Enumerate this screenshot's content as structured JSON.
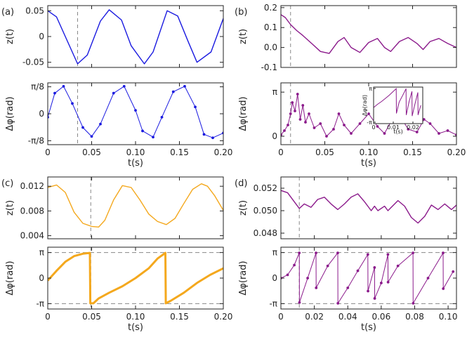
{
  "chart_data": [
    {
      "id": "a",
      "panel_label": "(a)",
      "type": "line",
      "row": "top",
      "color": "#1a1ae0",
      "xlim": [
        0,
        0.2
      ],
      "xticks": [
        0,
        0.05,
        0.1,
        0.15,
        0.2
      ],
      "xtick_labels": [],
      "xlabel": "",
      "ylim": [
        -0.06,
        0.06
      ],
      "yticks": [
        0.05,
        0,
        -0.05
      ],
      "ytick_labels": [
        "0.05",
        "0",
        "-0.05"
      ],
      "ylabel": "z(t)",
      "vline_x": 0.034,
      "series": [
        {
          "name": "z(t)",
          "x": [
            0,
            0.01,
            0.02,
            0.034,
            0.045,
            0.06,
            0.07,
            0.084,
            0.095,
            0.11,
            0.12,
            0.136,
            0.148,
            0.16,
            0.17,
            0.186,
            0.2
          ],
          "y": [
            0.05,
            0.038,
            0.0,
            -0.053,
            -0.036,
            0.03,
            0.052,
            0.032,
            -0.018,
            -0.053,
            -0.03,
            0.05,
            0.04,
            -0.01,
            -0.05,
            -0.03,
            0.035
          ]
        }
      ]
    },
    {
      "id": "a2",
      "panel_label": "",
      "type": "line",
      "row": "bottom",
      "color": "#1a1ae0",
      "markers": true,
      "xlim": [
        0,
        0.2
      ],
      "xticks": [
        0,
        0.05,
        0.1,
        0.15,
        0.2
      ],
      "xtick_labels": [
        "0",
        "0.05",
        "0.10",
        "0.15",
        "0.20"
      ],
      "xlabel": "t(s)",
      "ylim": [
        -0.45,
        0.45
      ],
      "yticks": [
        0.3927,
        0,
        -0.3927
      ],
      "ytick_labels": [
        "π/8",
        "0",
        "-π/8"
      ],
      "ylabel": "Δφ(rad)",
      "vline_x": 0.034,
      "series": [
        {
          "name": "Δφ",
          "x": [
            0,
            0.008,
            0.018,
            0.028,
            0.04,
            0.05,
            0.06,
            0.075,
            0.087,
            0.1,
            0.108,
            0.12,
            0.13,
            0.143,
            0.156,
            0.168,
            0.178,
            0.188,
            0.2
          ],
          "y": [
            -0.05,
            0.3,
            0.4,
            0.15,
            -0.2,
            -0.33,
            -0.15,
            0.3,
            0.4,
            0.05,
            -0.25,
            -0.34,
            -0.05,
            0.32,
            0.4,
            0.1,
            -0.3,
            -0.35,
            -0.28
          ]
        }
      ]
    },
    {
      "id": "b",
      "panel_label": "(b)",
      "type": "line",
      "row": "top",
      "color": "#8b1a8b",
      "xlim": [
        0,
        0.2
      ],
      "xticks": [
        0,
        0.05,
        0.1,
        0.15,
        0.2
      ],
      "xtick_labels": [],
      "xlabel": "",
      "ylim": [
        -0.1,
        0.21
      ],
      "yticks": [
        0.2,
        0.1,
        0.0,
        -0.1
      ],
      "ytick_labels": [
        "0.2",
        "0.1",
        "0.0",
        "-0.1"
      ],
      "ylabel": "z(t)",
      "vline_x": 0.011,
      "series": [
        {
          "name": "z(t)",
          "x": [
            0,
            0.005,
            0.011,
            0.018,
            0.025,
            0.035,
            0.045,
            0.055,
            0.065,
            0.072,
            0.08,
            0.09,
            0.1,
            0.11,
            0.118,
            0.125,
            0.135,
            0.145,
            0.155,
            0.162,
            0.17,
            0.18,
            0.19,
            0.2
          ],
          "y": [
            0.165,
            0.15,
            0.115,
            0.085,
            0.06,
            0.02,
            -0.02,
            -0.03,
            0.03,
            0.05,
            0.0,
            -0.025,
            0.025,
            0.045,
            0.0,
            -0.02,
            0.03,
            0.05,
            0.02,
            -0.01,
            0.03,
            0.045,
            0.02,
            0.0
          ]
        }
      ]
    },
    {
      "id": "b2",
      "panel_label": "",
      "type": "line",
      "row": "bottom",
      "color": "#8b1a8b",
      "markers": true,
      "xlim": [
        0,
        0.2
      ],
      "xticks": [
        0,
        0.05,
        0.1,
        0.15,
        0.2
      ],
      "xtick_labels": [
        "0",
        "0.05",
        "0.10",
        "0.15",
        "0.20"
      ],
      "xlabel": "t(s)",
      "ylim": [
        -0.6,
        3.8
      ],
      "yticks": [
        3.1416,
        0
      ],
      "ytick_labels": [
        "π",
        "0"
      ],
      "ylabel": "Δφ(rad)",
      "vline_x": 0.011,
      "series": [
        {
          "name": "Δφ",
          "x": [
            0,
            0.004,
            0.008,
            0.011,
            0.013,
            0.016,
            0.019,
            0.022,
            0.025,
            0.028,
            0.032,
            0.038,
            0.045,
            0.052,
            0.06,
            0.066,
            0.072,
            0.08,
            0.09,
            0.1,
            0.11,
            0.118,
            0.125,
            0.135,
            0.145,
            0.155,
            0.163,
            0.17,
            0.18,
            0.19,
            0.2
          ],
          "y": [
            0.1,
            0.4,
            0.8,
            1.6,
            2.4,
            1.8,
            3.0,
            1.2,
            2.2,
            1.0,
            1.6,
            0.6,
            0.9,
            0.0,
            0.5,
            1.6,
            0.8,
            0.2,
            0.9,
            1.6,
            0.7,
            0.2,
            1.0,
            1.5,
            0.5,
            0.3,
            1.2,
            0.9,
            0.2,
            0.4,
            0.1
          ]
        }
      ],
      "inset": {
        "xlim": [
          0,
          0.025
        ],
        "xticks": [
          0,
          0.01,
          0.02
        ],
        "xtick_labels": [
          "0",
          "0.01",
          "0.02"
        ],
        "xlabel": "t(s)",
        "ylim": [
          -3.4,
          3.4
        ],
        "yticks": [
          3.1416,
          -3.1416
        ],
        "ytick_labels": [
          "π",
          "-π"
        ],
        "ylabel": "Δφ(rad)",
        "x": [
          0,
          0.002,
          0.004,
          0.006,
          0.008,
          0.01,
          0.0115,
          0.0116,
          0.013,
          0.015,
          0.0165,
          0.0166,
          0.018,
          0.0195,
          0.0196,
          0.021,
          0.0225,
          0.0226,
          0.024
        ],
        "y": [
          -0.4,
          0.2,
          0.7,
          1.3,
          1.9,
          2.6,
          3.1,
          -1.5,
          0.6,
          2.0,
          3.1,
          -1.8,
          0.6,
          2.6,
          -2.0,
          0.2,
          2.4,
          -1.8,
          0.0
        ]
      }
    },
    {
      "id": "c",
      "panel_label": "(c)",
      "type": "line",
      "row": "top",
      "color": "#f4a81d",
      "xlim": [
        0,
        0.2
      ],
      "xticks": [
        0,
        0.05,
        0.1,
        0.15,
        0.2
      ],
      "xtick_labels": [],
      "xlabel": "",
      "ylim": [
        0.0035,
        0.0135
      ],
      "yticks": [
        0.012,
        0.008,
        0.004
      ],
      "ytick_labels": [
        "0.012",
        "0.008",
        "0.004"
      ],
      "ylabel": "z(t)",
      "vline_x": 0.049,
      "series": [
        {
          "name": "z(t)",
          "x": [
            0,
            0.01,
            0.02,
            0.03,
            0.04,
            0.05,
            0.058,
            0.065,
            0.075,
            0.085,
            0.095,
            0.105,
            0.115,
            0.125,
            0.135,
            0.145,
            0.155,
            0.165,
            0.175,
            0.182,
            0.19,
            0.2
          ],
          "y": [
            0.0118,
            0.0122,
            0.011,
            0.0078,
            0.006,
            0.0055,
            0.0054,
            0.0065,
            0.0098,
            0.0121,
            0.0118,
            0.0098,
            0.0075,
            0.0063,
            0.0058,
            0.0068,
            0.0092,
            0.0115,
            0.0124,
            0.012,
            0.0105,
            0.0081
          ]
        }
      ]
    },
    {
      "id": "c2",
      "panel_label": "",
      "type": "line",
      "row": "bottom",
      "color": "#f4a81d",
      "xlim": [
        0,
        0.2
      ],
      "xticks": [
        0,
        0.05,
        0.1,
        0.15,
        0.2
      ],
      "xtick_labels": [
        "0",
        "0.05",
        "0.10",
        "0.15",
        "0.20"
      ],
      "xlabel": "t(s)",
      "ylim": [
        -3.8,
        3.8
      ],
      "yticks": [
        3.1416,
        0,
        -3.1416
      ],
      "ytick_labels": [
        "π",
        "0",
        "-π"
      ],
      "ylabel": "Δφ(rad)",
      "vline_x": 0.049,
      "hlines": [
        3.1416,
        -3.1416
      ],
      "series": [
        {
          "name": "Δφ",
          "x": [
            0,
            0.01,
            0.02,
            0.03,
            0.04,
            0.048,
            0.0485,
            0.052,
            0.058,
            0.07,
            0.085,
            0.1,
            0.115,
            0.125,
            0.134,
            0.1345,
            0.14,
            0.155,
            0.17,
            0.185,
            0.2
          ],
          "y": [
            -0.3,
            0.9,
            2.0,
            2.7,
            3.0,
            3.1,
            -3.1,
            -3.1,
            -2.5,
            -1.8,
            -1.0,
            0.0,
            1.2,
            2.4,
            3.1,
            -3.1,
            -2.8,
            -1.8,
            -0.6,
            0.4,
            1.2
          ]
        }
      ]
    },
    {
      "id": "d",
      "panel_label": "(d)",
      "type": "line",
      "row": "top",
      "color": "#8b1a8b",
      "xlim": [
        0,
        0.105
      ],
      "xticks": [
        0,
        0.02,
        0.04,
        0.06,
        0.08,
        0.1
      ],
      "xtick_labels": [],
      "xlabel": "",
      "ylim": [
        0.0475,
        0.053
      ],
      "yticks": [
        0.052,
        0.05,
        0.048
      ],
      "ytick_labels": [
        "0.052",
        "0.050",
        "0.048"
      ],
      "ylabel": "z(t)",
      "vline_x": 0.011,
      "series": [
        {
          "name": "z(t)",
          "x": [
            0,
            0.004,
            0.008,
            0.011,
            0.014,
            0.018,
            0.022,
            0.026,
            0.03,
            0.034,
            0.038,
            0.042,
            0.046,
            0.05,
            0.054,
            0.056,
            0.058,
            0.062,
            0.064,
            0.066,
            0.07,
            0.074,
            0.078,
            0.082,
            0.086,
            0.09,
            0.094,
            0.098,
            0.102,
            0.105
          ],
          "y": [
            0.0518,
            0.0516,
            0.0508,
            0.0502,
            0.0506,
            0.0503,
            0.051,
            0.0512,
            0.0506,
            0.0501,
            0.0506,
            0.0512,
            0.0515,
            0.0508,
            0.05,
            0.0504,
            0.05,
            0.0504,
            0.05,
            0.0503,
            0.0509,
            0.0504,
            0.0494,
            0.0489,
            0.0495,
            0.0505,
            0.0501,
            0.0506,
            0.0501,
            0.0505
          ]
        }
      ]
    },
    {
      "id": "d2",
      "panel_label": "",
      "type": "line",
      "row": "bottom",
      "color": "#8b1a8b",
      "markers": true,
      "xlim": [
        0,
        0.105
      ],
      "xticks": [
        0,
        0.02,
        0.04,
        0.06,
        0.08,
        0.1
      ],
      "xtick_labels": [
        "0",
        "0.02",
        "0.04",
        "0.06",
        "0.08",
        "0.10"
      ],
      "xlabel": "t(s)",
      "ylim": [
        -3.8,
        3.8
      ],
      "yticks": [
        3.1416,
        0,
        -3.1416
      ],
      "ytick_labels": [
        "π",
        "0",
        "-π"
      ],
      "ylabel": "Δφ(rad)",
      "vline_x": 0.011,
      "hlines": [
        3.1416,
        -3.1416
      ],
      "series": [
        {
          "name": "Δφ",
          "x": [
            0,
            0.004,
            0.008,
            0.011,
            0.0111,
            0.016,
            0.021,
            0.0211,
            0.028,
            0.034,
            0.0341,
            0.04,
            0.046,
            0.052,
            0.0521,
            0.056,
            0.0561,
            0.06,
            0.064,
            0.0641,
            0.07,
            0.079,
            0.0791,
            0.088,
            0.097,
            0.0971,
            0.103
          ],
          "y": [
            0.0,
            0.4,
            1.6,
            3.1,
            -3.0,
            0.0,
            3.1,
            -1.2,
            1.5,
            3.1,
            -3.1,
            -1.2,
            0.9,
            2.9,
            -1.6,
            1.3,
            -2.5,
            -0.6,
            2.9,
            -0.5,
            1.5,
            3.1,
            -3.1,
            0.0,
            3.1,
            -1.3,
            0.8
          ]
        }
      ]
    }
  ]
}
